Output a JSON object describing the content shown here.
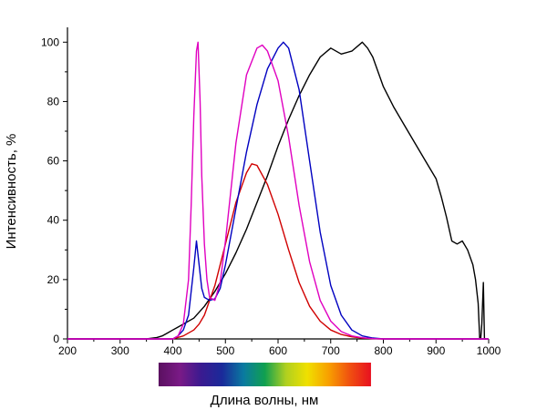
{
  "chart_data": {
    "type": "line",
    "xlabel": "Длина волны, нм",
    "ylabel": "Интенсивность, %",
    "xlim": [
      200,
      1000
    ],
    "ylim": [
      0,
      105
    ],
    "x_ticks": [
      "200",
      "300",
      "400",
      "500",
      "600",
      "700",
      "800",
      "900",
      "1000"
    ],
    "y_ticks": [
      "0",
      "20",
      "40",
      "60",
      "80",
      "100"
    ],
    "grid": false,
    "legend": "none",
    "color_bar": {
      "range": [
        380,
        780
      ],
      "stops": [
        "#5a1060",
        "#7a1a86",
        "#3a1a90",
        "#1a2a9a",
        "#0a7aa0",
        "#10a050",
        "#b0d020",
        "#f0e000",
        "#f8a000",
        "#f05010",
        "#e81020"
      ]
    },
    "series": [
      {
        "color": "#000000",
        "x": [
          200,
          350,
          370,
          380,
          390,
          400,
          410,
          420,
          440,
          460,
          480,
          500,
          520,
          540,
          560,
          580,
          600,
          620,
          640,
          660,
          680,
          700,
          720,
          740,
          760,
          770,
          780,
          800,
          820,
          840,
          860,
          880,
          900,
          910,
          920,
          930,
          940,
          950,
          960,
          970,
          975,
          980,
          983,
          985,
          987,
          990,
          992,
          995
        ],
        "y": [
          0,
          0,
          0.5,
          1,
          2,
          3,
          4,
          5,
          7,
          11,
          16,
          22,
          29,
          37,
          46,
          55,
          65,
          74,
          82,
          89,
          95,
          98,
          96,
          97,
          100,
          98,
          95,
          85,
          78,
          72,
          66,
          60,
          54,
          48,
          41,
          33,
          32,
          33,
          30,
          25,
          20,
          12,
          0,
          0,
          5,
          19,
          0,
          0
        ]
      },
      {
        "color": "#d00000",
        "x": [
          200,
          400,
          420,
          440,
          450,
          460,
          480,
          500,
          520,
          540,
          550,
          560,
          580,
          600,
          620,
          640,
          660,
          680,
          700,
          720,
          740,
          760,
          780,
          800,
          1000
        ],
        "y": [
          0,
          0,
          1,
          3,
          5,
          8,
          18,
          32,
          46,
          56,
          59,
          58.5,
          52,
          42,
          30,
          19,
          11,
          6,
          3,
          1.5,
          0.7,
          0.3,
          0.1,
          0,
          0
        ]
      },
      {
        "color": "#0000c0",
        "x": [
          200,
          400,
          410,
          420,
          430,
          440,
          445,
          450,
          455,
          460,
          470,
          480,
          490,
          500,
          520,
          540,
          560,
          580,
          600,
          610,
          620,
          640,
          660,
          680,
          700,
          720,
          740,
          760,
          780,
          800,
          1000
        ],
        "y": [
          0,
          0,
          1,
          3,
          8,
          24,
          33,
          25,
          17,
          14,
          13,
          13.5,
          17,
          25,
          44,
          63,
          79,
          91,
          98,
          100,
          98,
          84,
          60,
          36,
          18,
          8,
          3,
          1,
          0.3,
          0,
          0
        ]
      },
      {
        "color": "#e000c0",
        "x": [
          200,
          400,
          410,
          420,
          430,
          435,
          440,
          445,
          448,
          452,
          455,
          460,
          465,
          470,
          480,
          490,
          500,
          520,
          540,
          560,
          570,
          580,
          600,
          620,
          640,
          660,
          680,
          700,
          720,
          740,
          760,
          780,
          800,
          1000
        ],
        "y": [
          0,
          0,
          1,
          5,
          20,
          45,
          75,
          97,
          100,
          80,
          55,
          32,
          20,
          14,
          13,
          19,
          33,
          66,
          89,
          98,
          99,
          97,
          87,
          68,
          45,
          26,
          13,
          6,
          2.5,
          1,
          0.4,
          0.1,
          0,
          0
        ]
      }
    ]
  }
}
